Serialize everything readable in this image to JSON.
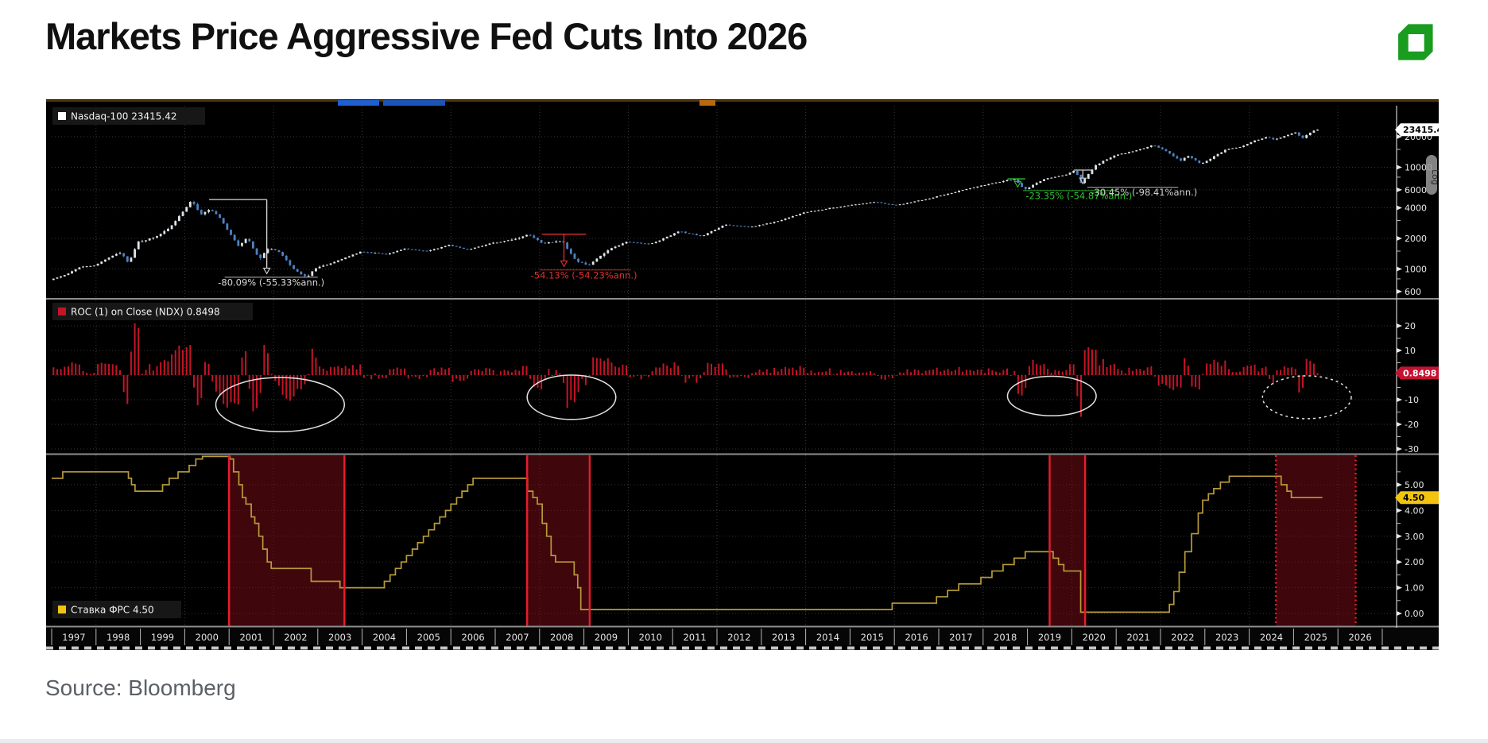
{
  "page": {
    "title": "Markets Price Aggressive Fed Cuts Into 2026",
    "source": "Source: Bloomberg",
    "logo_color": "#1a9c1f"
  },
  "chart_data": {
    "type": "multi-panel-financial",
    "background": "#000000",
    "x_axis": {
      "years": [
        "1997",
        "1998",
        "1999",
        "2000",
        "2001",
        "2002",
        "2003",
        "2004",
        "2005",
        "2006",
        "2007",
        "2008",
        "2009",
        "2010",
        "2011",
        "2012",
        "2013",
        "2014",
        "2015",
        "2016",
        "2017",
        "2018",
        "2019",
        "2020",
        "2021",
        "2022",
        "2023",
        "2024",
        "2025",
        "2026"
      ],
      "grid_every_years": 2
    },
    "price_panel": {
      "type": "candlestick",
      "scale": "log",
      "legend_label": "Nasdaq-100",
      "legend_value": "23415.42",
      "last_price_tag": "23415.42",
      "axis_scale_label": "Log",
      "y_ticks": [
        20000,
        10000,
        6000,
        4000,
        2000,
        1000,
        600
      ],
      "minor_ticks": [
        15000,
        8000,
        3000,
        1500,
        800
      ],
      "up_color": "#dfe4ea",
      "down_color": "#4d82c4",
      "monthly_price_path": [
        [
          1997.0,
          780
        ],
        [
          1997.3,
          860
        ],
        [
          1997.7,
          1050
        ],
        [
          1998.0,
          1080
        ],
        [
          1998.4,
          1350
        ],
        [
          1998.6,
          1450
        ],
        [
          1998.78,
          1130
        ],
        [
          1999.0,
          1850
        ],
        [
          1999.4,
          2100
        ],
        [
          1999.7,
          2500
        ],
        [
          2000.0,
          3650
        ],
        [
          2000.2,
          4700
        ],
        [
          2000.4,
          3350
        ],
        [
          2000.6,
          3950
        ],
        [
          2000.8,
          3350
        ],
        [
          2001.0,
          2450
        ],
        [
          2001.25,
          1680
        ],
        [
          2001.45,
          2060
        ],
        [
          2001.72,
          1230
        ],
        [
          2001.95,
          1620
        ],
        [
          2002.2,
          1440
        ],
        [
          2002.5,
          1000
        ],
        [
          2002.78,
          830
        ],
        [
          2003.0,
          1010
        ],
        [
          2003.5,
          1210
        ],
        [
          2004.0,
          1480
        ],
        [
          2004.6,
          1400
        ],
        [
          2005.0,
          1580
        ],
        [
          2005.5,
          1500
        ],
        [
          2006.0,
          1720
        ],
        [
          2006.4,
          1550
        ],
        [
          2007.0,
          1800
        ],
        [
          2007.5,
          1960
        ],
        [
          2007.8,
          2210
        ],
        [
          2008.1,
          1790
        ],
        [
          2008.55,
          1880
        ],
        [
          2008.85,
          1230
        ],
        [
          2009.15,
          1090
        ],
        [
          2009.6,
          1550
        ],
        [
          2010.0,
          1860
        ],
        [
          2010.55,
          1760
        ],
        [
          2011.2,
          2350
        ],
        [
          2011.7,
          2100
        ],
        [
          2012.2,
          2720
        ],
        [
          2012.8,
          2580
        ],
        [
          2013.4,
          2950
        ],
        [
          2014.0,
          3590
        ],
        [
          2014.8,
          4100
        ],
        [
          2015.6,
          4550
        ],
        [
          2016.1,
          4250
        ],
        [
          2016.8,
          4880
        ],
        [
          2017.5,
          5880
        ],
        [
          2018.2,
          6900
        ],
        [
          2018.75,
          7650
        ],
        [
          2018.98,
          6020
        ],
        [
          2019.4,
          7600
        ],
        [
          2019.9,
          8400
        ],
        [
          2020.12,
          9600
        ],
        [
          2020.25,
          7000
        ],
        [
          2020.6,
          10700
        ],
        [
          2021.0,
          13000
        ],
        [
          2021.5,
          14600
        ],
        [
          2021.88,
          16560
        ],
        [
          2022.2,
          14200
        ],
        [
          2022.5,
          11600
        ],
        [
          2022.65,
          13100
        ],
        [
          2022.95,
          10700
        ],
        [
          2023.3,
          13200
        ],
        [
          2023.55,
          15200
        ],
        [
          2023.85,
          15800
        ],
        [
          2024.1,
          17800
        ],
        [
          2024.45,
          19900
        ],
        [
          2024.6,
          18700
        ],
        [
          2024.95,
          21200
        ],
        [
          2025.1,
          22100
        ],
        [
          2025.22,
          19100
        ],
        [
          2025.4,
          21800
        ],
        [
          2025.58,
          23415.42
        ]
      ],
      "annotations": [
        {
          "id": "dotcom-crash",
          "text": "-80.09% (-55.33%ann.)",
          "color": "#d9d9d9",
          "line_price": 4816,
          "line_from": 2000.55,
          "line_to": 2001.85,
          "drop_year": 2001.85,
          "drop_to_price": 900,
          "label_year": 2001.95,
          "label_anchor": "middle",
          "overline_from": 2000.9,
          "overline_to": 2003.0
        },
        {
          "id": "gfc-crash",
          "text": "-54.13% (-54.23%ann.)",
          "color": "#e03030",
          "line_price": 2200,
          "line_from": 2008.05,
          "line_to": 2009.05,
          "drop_year": 2008.55,
          "drop_to_price": 1060,
          "label_year": 2009.0,
          "label_anchor": "middle",
          "overline_from": 2008.0,
          "overline_to": 2010.05
        },
        {
          "id": "q4-2018-selloff",
          "text": "-23.35% (-54.87%ann.)",
          "color": "#2ec52e",
          "line_price": 7700,
          "line_from": 2018.55,
          "line_to": 2018.95,
          "drop_year": 2018.78,
          "drop_to_price": 6400,
          "label_year": 2018.95,
          "label_anchor": "start",
          "overline_from": 2018.9,
          "overline_to": 2021.0
        },
        {
          "id": "covid-crash",
          "text": "-30.45% (-98.41%ann.)",
          "color": "#cfcfcf",
          "line_price": 9400,
          "line_from": 2020.05,
          "line_to": 2020.45,
          "drop_year": 2020.25,
          "drop_to_price": 6900,
          "label_year": 2020.45,
          "label_anchor": "start",
          "overline_from": 2020.35,
          "overline_to": 2022.4
        }
      ]
    },
    "roc_panel": {
      "type": "bar",
      "legend_label": "ROC (1)  on Close (NDX)",
      "legend_value": "0.8498",
      "value_tag": "0.8498",
      "y_ticks": [
        20,
        10,
        -10,
        -20,
        -30
      ],
      "bar_color": "#c41426",
      "derivation": "monthly percent change of Nasdaq-100 price path",
      "highlight_ellipses": [
        {
          "center_year": 2002.15,
          "center_value": -12,
          "rx_years": 1.45,
          "rv": 11,
          "style": "solid"
        },
        {
          "center_year": 2008.72,
          "center_value": -9,
          "rx_years": 1.0,
          "rv": 9,
          "style": "solid"
        },
        {
          "center_year": 2019.55,
          "center_value": -8.5,
          "rx_years": 1.0,
          "rv": 8,
          "style": "solid"
        },
        {
          "center_year": 2025.3,
          "center_value": -9,
          "rx_years": 1.0,
          "rv": 8.7,
          "style": "dotted"
        }
      ]
    },
    "rate_panel": {
      "type": "step-line",
      "legend_label": "Ставка ФРС",
      "legend_value": "4.50",
      "value_tag": "4.50",
      "y_ticks": [
        "5.00",
        "4.00",
        "3.00",
        "2.00",
        "1.00",
        "0.00"
      ],
      "minor_ticks": [
        5.5,
        3.5,
        2.5,
        1.5,
        0.5
      ],
      "line_color": "#b79a3a",
      "marker_color": "#f2c40f",
      "fed_rate_steps": [
        [
          1997.0,
          5.25
        ],
        [
          1997.25,
          5.5
        ],
        [
          1998.73,
          5.25
        ],
        [
          1998.8,
          5.0
        ],
        [
          1998.88,
          4.75
        ],
        [
          1999.5,
          5.0
        ],
        [
          1999.65,
          5.25
        ],
        [
          1999.85,
          5.5
        ],
        [
          2000.1,
          5.75
        ],
        [
          2000.25,
          6.0
        ],
        [
          2000.4,
          6.5
        ],
        [
          2001.02,
          6.0
        ],
        [
          2001.1,
          5.5
        ],
        [
          2001.22,
          5.0
        ],
        [
          2001.3,
          4.5
        ],
        [
          2001.38,
          4.25
        ],
        [
          2001.5,
          3.75
        ],
        [
          2001.58,
          3.5
        ],
        [
          2001.67,
          3.0
        ],
        [
          2001.76,
          2.5
        ],
        [
          2001.86,
          2.0
        ],
        [
          2001.95,
          1.75
        ],
        [
          2002.85,
          1.25
        ],
        [
          2003.5,
          1.0
        ],
        [
          2004.5,
          1.25
        ],
        [
          2004.63,
          1.5
        ],
        [
          2004.75,
          1.75
        ],
        [
          2004.88,
          2.0
        ],
        [
          2005.0,
          2.25
        ],
        [
          2005.13,
          2.5
        ],
        [
          2005.25,
          2.75
        ],
        [
          2005.38,
          3.0
        ],
        [
          2005.5,
          3.25
        ],
        [
          2005.63,
          3.5
        ],
        [
          2005.75,
          3.75
        ],
        [
          2005.88,
          4.0
        ],
        [
          2006.0,
          4.25
        ],
        [
          2006.13,
          4.5
        ],
        [
          2006.25,
          4.75
        ],
        [
          2006.38,
          5.0
        ],
        [
          2006.5,
          5.25
        ],
        [
          2007.73,
          4.75
        ],
        [
          2007.85,
          4.5
        ],
        [
          2007.95,
          4.25
        ],
        [
          2008.06,
          3.5
        ],
        [
          2008.16,
          3.0
        ],
        [
          2008.26,
          2.25
        ],
        [
          2008.36,
          2.0
        ],
        [
          2008.78,
          1.5
        ],
        [
          2008.86,
          1.0
        ],
        [
          2008.93,
          0.15
        ],
        [
          2015.95,
          0.4
        ],
        [
          2016.95,
          0.65
        ],
        [
          2017.2,
          0.9
        ],
        [
          2017.45,
          1.15
        ],
        [
          2017.95,
          1.4
        ],
        [
          2018.2,
          1.65
        ],
        [
          2018.45,
          1.9
        ],
        [
          2018.7,
          2.15
        ],
        [
          2018.95,
          2.4
        ],
        [
          2019.58,
          2.15
        ],
        [
          2019.7,
          1.9
        ],
        [
          2019.82,
          1.65
        ],
        [
          2020.2,
          0.05
        ],
        [
          2022.2,
          0.35
        ],
        [
          2022.3,
          0.85
        ],
        [
          2022.42,
          1.6
        ],
        [
          2022.55,
          2.4
        ],
        [
          2022.7,
          3.1
        ],
        [
          2022.85,
          3.9
        ],
        [
          2022.95,
          4.4
        ],
        [
          2023.08,
          4.65
        ],
        [
          2023.2,
          4.85
        ],
        [
          2023.35,
          5.1
        ],
        [
          2023.55,
          5.33
        ],
        [
          2024.72,
          5.0
        ],
        [
          2024.85,
          4.75
        ],
        [
          2024.95,
          4.5
        ],
        [
          2025.65,
          4.5
        ]
      ],
      "cut_regions": [
        {
          "from": 2001.0,
          "to": 2003.6,
          "style": "solid"
        },
        {
          "from": 2007.72,
          "to": 2009.13,
          "style": "solid"
        },
        {
          "from": 2019.5,
          "to": 2020.3,
          "style": "solid"
        },
        {
          "from": 2024.6,
          "to": 2026.4,
          "style": "dotted"
        }
      ],
      "region_fill": "rgba(126,14,24,0.5)",
      "region_line_color": "#ea1b2d"
    }
  }
}
